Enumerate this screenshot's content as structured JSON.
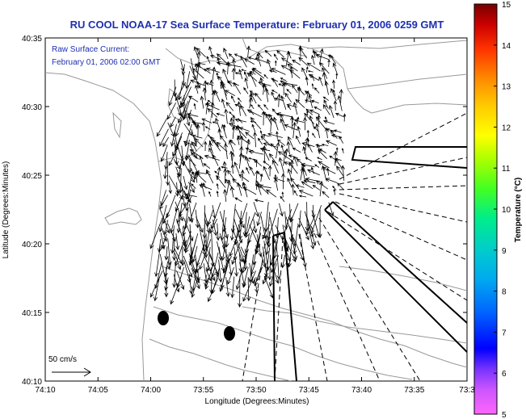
{
  "title": "RU COOL  NOAA-17  Sea Surface Temperature:  February 01, 2006 0259 GMT",
  "annotation": {
    "line1": "Raw Surface Current:",
    "line2": "February 01, 2006 02:00 GMT"
  },
  "scale_label": "50 cm/s",
  "axes": {
    "xlabel": "Longitude (Degrees:Minutes)",
    "ylabel": "Latitude (Degrees:Minutes)",
    "xticks": [
      "74:10",
      "74:05",
      "74:00",
      "73:55",
      "73:50",
      "73:45",
      "73:40",
      "73:35",
      "73:3"
    ],
    "yticks": [
      "40:35",
      "40:30",
      "40:25",
      "40:20",
      "40:15",
      "40:10"
    ]
  },
  "colorbar": {
    "title": "Temperature (°C)",
    "ticks": [
      "15",
      "14",
      "13",
      "12",
      "11",
      "10",
      "9",
      "8",
      "7",
      "6",
      "5"
    ],
    "colors": [
      "#ff66ff",
      "#aa44ff",
      "#0000ff",
      "#0088ff",
      "#00cccc",
      "#00ff88",
      "#66ff00",
      "#ccff00",
      "#ffff00",
      "#ffcc00",
      "#ff8800",
      "#ff3300",
      "#dd0000",
      "#aa0000",
      "#770000"
    ]
  },
  "colors": {
    "text_blue": "#1f2fb0",
    "land_contour": "#999999"
  }
}
